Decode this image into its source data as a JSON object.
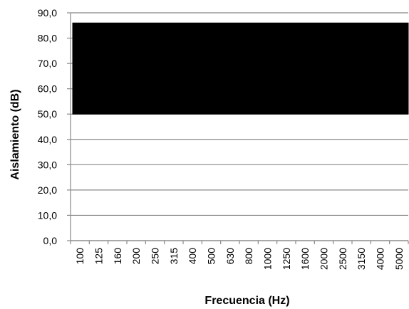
{
  "chart_data": {
    "type": "area",
    "title": "",
    "xlabel": "Frecuencia (Hz)",
    "ylabel": "Aislamiento (dB)",
    "categories": [
      "100",
      "125",
      "160",
      "200",
      "250",
      "315",
      "400",
      "500",
      "630",
      "800",
      "1000",
      "1250",
      "1600",
      "2000",
      "2500",
      "3150",
      "4000",
      "5000"
    ],
    "y_ticks": [
      "0,0",
      "10,0",
      "20,0",
      "30,0",
      "40,0",
      "50,0",
      "60,0",
      "70,0",
      "80,0",
      "90,0"
    ],
    "ylim": [
      0,
      90
    ],
    "grid": true,
    "legend": "none",
    "series": [
      {
        "lower": [
          50,
          50,
          50,
          50,
          50,
          50,
          50,
          50,
          50,
          50,
          50,
          50,
          50,
          50,
          50,
          50,
          50,
          50
        ],
        "upper": [
          86,
          86,
          86,
          86,
          86,
          86,
          86,
          86,
          86,
          86,
          86,
          86,
          86,
          86,
          86,
          86,
          86,
          86
        ],
        "color": "#000000"
      }
    ],
    "colors": {
      "grid": "#888888",
      "axis": "#888888",
      "fill": "#000000"
    }
  }
}
